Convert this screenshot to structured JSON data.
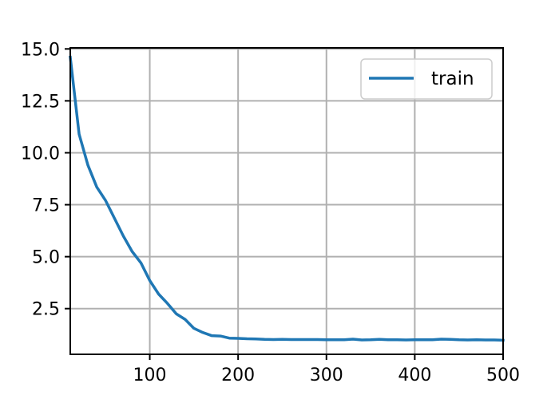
{
  "chart_data": {
    "type": "line",
    "title": "",
    "xlabel": "",
    "ylabel": "",
    "xlim": [
      10,
      500
    ],
    "ylim": [
      0.3,
      15.05
    ],
    "xticks": [
      100,
      200,
      300,
      400,
      500
    ],
    "yticks": [
      2.5,
      5.0,
      7.5,
      10.0,
      12.5,
      15.0
    ],
    "xtick_labels": [
      "100",
      "200",
      "300",
      "400",
      "500"
    ],
    "ytick_labels": [
      "2.5",
      "5.0",
      "7.5",
      "10.0",
      "12.5",
      "15.0"
    ],
    "grid": true,
    "legend_position": "upper right",
    "series": [
      {
        "name": "train",
        "color": "#1f77b4",
        "x": [
          10,
          20,
          30,
          40,
          50,
          60,
          70,
          80,
          90,
          100,
          110,
          120,
          130,
          140,
          150,
          160,
          170,
          180,
          190,
          200,
          210,
          220,
          230,
          240,
          250,
          260,
          270,
          280,
          290,
          300,
          310,
          320,
          330,
          340,
          350,
          360,
          370,
          380,
          390,
          400,
          410,
          420,
          430,
          440,
          450,
          460,
          470,
          480,
          490,
          500
        ],
        "y": [
          14.6,
          10.9,
          9.4,
          8.35,
          7.7,
          6.85,
          6.0,
          5.25,
          4.7,
          3.85,
          3.2,
          2.75,
          2.25,
          1.98,
          1.55,
          1.35,
          1.2,
          1.18,
          1.08,
          1.07,
          1.05,
          1.04,
          1.02,
          1.01,
          1.02,
          1.01,
          1.01,
          1.01,
          1.01,
          1.0,
          1.0,
          1.0,
          1.03,
          0.99,
          1.0,
          1.02,
          1.0,
          1.0,
          0.99,
          1.0,
          1.0,
          1.0,
          1.03,
          1.02,
          1.0,
          0.99,
          1.0,
          0.99,
          0.99,
          0.98
        ]
      }
    ]
  }
}
